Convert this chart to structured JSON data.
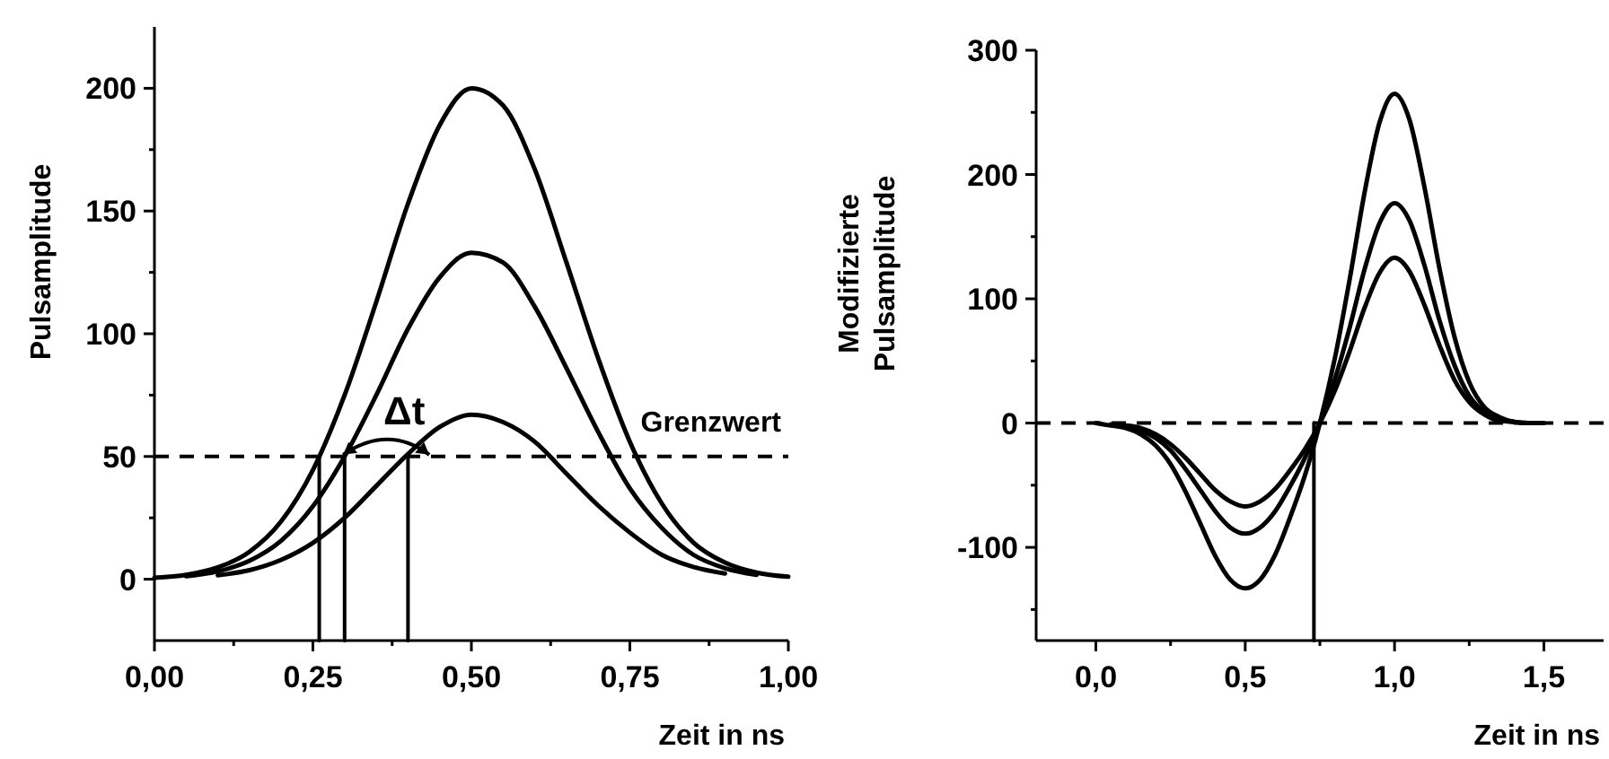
{
  "chart_data": [
    {
      "type": "line",
      "xlabel": "Zeit in ns",
      "ylabel": "Pulsamplitude",
      "grid": false,
      "x": [
        0,
        0.05,
        0.1,
        0.15,
        0.2,
        0.25,
        0.3,
        0.35,
        0.4,
        0.45,
        0.5,
        0.55,
        0.6,
        0.65,
        0.7,
        0.75,
        0.8,
        0.85,
        0.9,
        0.95,
        1.0
      ],
      "series": [
        {
          "color": "#000000",
          "line_style": "solid",
          "values": [
            0.6,
            1.8,
            4.8,
            11.2,
            23.6,
            44.5,
            75,
            113,
            153,
            185,
            200,
            193,
            167,
            129,
            90,
            56,
            31,
            15,
            6.8,
            2.7,
            1
          ]
        },
        {
          "color": "#000000",
          "line_style": "solid",
          "x": [
            0.05,
            0.1,
            0.15,
            0.2,
            0.25,
            0.3,
            0.35,
            0.4,
            0.45,
            0.5,
            0.55,
            0.6,
            0.65,
            0.7,
            0.75,
            0.8,
            0.85,
            0.9,
            0.95
          ],
          "values": [
            1.2,
            3.2,
            7.5,
            15.7,
            29.7,
            50,
            75,
            102,
            123,
            133,
            129,
            111,
            86,
            60,
            37,
            21,
            10,
            4.5,
            1.8
          ]
        },
        {
          "color": "#000000",
          "line_style": "solid",
          "x": [
            0.1,
            0.15,
            0.2,
            0.25,
            0.3,
            0.35,
            0.4,
            0.45,
            0.5,
            0.55,
            0.6,
            0.65,
            0.7,
            0.75,
            0.8,
            0.85,
            0.9
          ],
          "values": [
            1.6,
            3.7,
            7.9,
            14.8,
            25,
            38,
            51,
            62,
            67,
            64,
            56,
            43,
            30,
            19,
            10,
            5,
            2.3
          ]
        },
        {
          "color": "#000000",
          "line_style": "solid",
          "x": [
            0.26,
            0.26
          ],
          "values": [
            -25,
            50
          ]
        },
        {
          "color": "#000000",
          "line_style": "solid",
          "x": [
            0.3,
            0.3
          ],
          "values": [
            -25,
            50
          ]
        },
        {
          "color": "#000000",
          "line_style": "solid",
          "x": [
            0.4,
            0.4
          ],
          "values": [
            -25,
            50
          ]
        }
      ],
      "ref_lines": [
        {
          "axis": "y",
          "value": 50,
          "label": "Grenzwert",
          "color": "#000000",
          "line_style": "dashed"
        }
      ],
      "annotations": [
        "Δt"
      ],
      "xlim": [
        0,
        1.0
      ],
      "xticks": [
        {
          "value": 0,
          "label": "0,00"
        },
        {
          "value": 0.125,
          "label": null
        },
        {
          "value": 0.25,
          "label": "0,25"
        },
        {
          "value": 0.375,
          "label": null
        },
        {
          "value": 0.5,
          "label": "0,50"
        },
        {
          "value": 0.625,
          "label": null
        },
        {
          "value": 0.75,
          "label": "0,75"
        },
        {
          "value": 0.875,
          "label": null
        },
        {
          "value": 1.0,
          "label": "1,00"
        }
      ],
      "ylim": [
        -25,
        225
      ],
      "yticks": [
        0,
        {
          "value": 25,
          "label": null
        },
        50,
        {
          "value": 75,
          "label": null
        },
        100,
        {
          "value": 125,
          "label": null
        },
        150,
        {
          "value": 175,
          "label": null
        },
        200
      ]
    },
    {
      "type": "line",
      "xlabel": "Zeit in ns",
      "ylabel": "Modifizierte\nPulsamplitude",
      "grid": false,
      "x": [
        0,
        0.05,
        0.1,
        0.15,
        0.2,
        0.25,
        0.3,
        0.35,
        0.4,
        0.45,
        0.5,
        0.55,
        0.6,
        0.65,
        0.7,
        0.75,
        0.8,
        0.85,
        0.9,
        0.95,
        1.0,
        1.05,
        1.1,
        1.15,
        1.2,
        1.25,
        1.3,
        1.35,
        1.4,
        1.45,
        1.5
      ],
      "series": [
        {
          "color": "#000000",
          "line_style": "solid",
          "values": [
            0,
            -2,
            -4,
            -9,
            -18,
            -33,
            -55,
            -81,
            -107,
            -126,
            -133,
            -126,
            -106,
            -76,
            -42,
            0,
            52,
            116,
            186,
            242,
            265,
            244,
            190,
            125,
            70,
            33,
            13,
            5,
            1,
            0,
            0
          ]
        },
        {
          "color": "#000000",
          "line_style": "solid",
          "x": [
            0.05,
            0.1,
            0.15,
            0.2,
            0.25,
            0.3,
            0.35,
            0.4,
            0.45,
            0.5,
            0.55,
            0.6,
            0.65,
            0.7,
            0.75,
            0.8,
            0.85,
            0.9,
            0.95,
            1.0,
            1.05,
            1.1,
            1.15,
            1.2,
            1.25,
            1.3,
            1.35,
            1.4,
            1.45
          ],
          "values": [
            -1,
            -3,
            -6,
            -12,
            -22,
            -37,
            -54,
            -71,
            -84,
            -89,
            -84,
            -71,
            -51,
            -28,
            0,
            35,
            77,
            124,
            161,
            177,
            163,
            127,
            83,
            47,
            22,
            9,
            3,
            1,
            0
          ]
        },
        {
          "color": "#000000",
          "line_style": "solid",
          "x": [
            0.1,
            0.15,
            0.2,
            0.25,
            0.3,
            0.35,
            0.4,
            0.45,
            0.5,
            0.55,
            0.6,
            0.65,
            0.7,
            0.75,
            0.8,
            0.85,
            0.9,
            0.95,
            1.0,
            1.05,
            1.1,
            1.15,
            1.2,
            1.25,
            1.3,
            1.35,
            1.4
          ],
          "values": [
            -2,
            -4,
            -9,
            -17,
            -28,
            -41,
            -54,
            -63,
            -67,
            -63,
            -53,
            -38,
            -21,
            0,
            26,
            58,
            93,
            121,
            133,
            122,
            95,
            63,
            35,
            17,
            7,
            2,
            1
          ]
        },
        {
          "color": "#000000",
          "line_style": "solid",
          "x": [
            0.73,
            0.73
          ],
          "values": [
            -175,
            0
          ]
        }
      ],
      "ref_lines": [
        {
          "axis": "y",
          "value": 0,
          "color": "#000000",
          "line_style": "dashed"
        }
      ],
      "xlim": [
        -0.2,
        1.7
      ],
      "xticks": [
        {
          "value": 0,
          "label": "0,0"
        },
        {
          "value": 0.25,
          "label": null
        },
        {
          "value": 0.5,
          "label": "0,5"
        },
        {
          "value": 0.75,
          "label": null
        },
        {
          "value": 1.0,
          "label": "1,0"
        },
        {
          "value": 1.25,
          "label": null
        },
        {
          "value": 1.5,
          "label": "1,5"
        }
      ],
      "ylim": [
        -175,
        300
      ],
      "yticks": [
        {
          "value": -150,
          "label": null
        },
        -100,
        {
          "value": -50,
          "label": null
        },
        0,
        {
          "value": 50,
          "label": null
        },
        100,
        {
          "value": 150,
          "label": null
        },
        200,
        {
          "value": 250,
          "label": null
        },
        300
      ]
    }
  ]
}
